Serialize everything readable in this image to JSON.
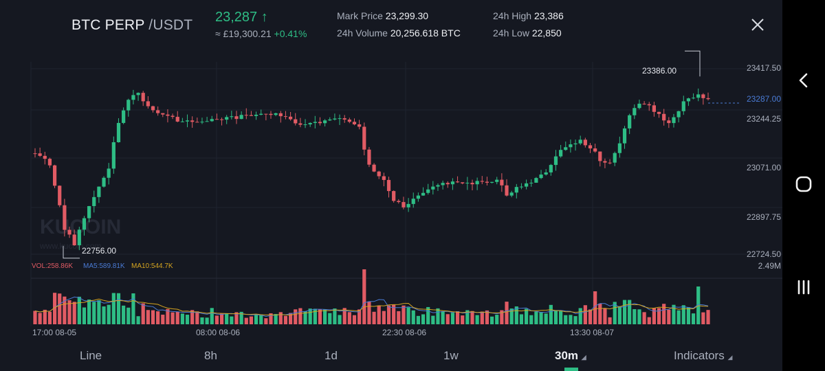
{
  "header": {
    "symbol": "BTC PERP",
    "quote": "/USDT",
    "last_price": "23,287",
    "price_arrow": "↑",
    "fiat_approx": "≈ £19,300.21",
    "change_pct": "+0.41%",
    "mark_price_label": "Mark Price",
    "mark_price_value": "23,299.30",
    "high_label": "24h High",
    "high_value": "23,386",
    "volume_label": "24h Volume",
    "volume_value": "20,256.618 BTC",
    "low_label": "24h Low",
    "low_value": "22,850",
    "close_icon": "close-icon"
  },
  "chart": {
    "price_ticks": [
      "23417.50",
      "23244.25",
      "23071.00",
      "22897.75",
      "22724.50"
    ],
    "current_price_label": "23287.00",
    "high_marker": "23386.00",
    "low_marker": "22756.00",
    "volume_max_label": "2.49M",
    "vol_legend": {
      "vol": "VOL:258.86K",
      "ma5": "MA5:589.81K",
      "ma10": "MA10:544.7K"
    },
    "time_ticks": [
      "17:00 08-05",
      "08:00 08-06",
      "22:30 08-06",
      "13:30 08-07"
    ],
    "watermark": "KUCOIN",
    "watermark_url": "www.kucoin.com",
    "colors": {
      "up": "#2ebd85",
      "down": "#e15b64",
      "ma5": "#4a7bd5",
      "ma10": "#d6a520",
      "background": "#151821",
      "grid": "#1f2330"
    }
  },
  "tabs": {
    "items": [
      "Line",
      "8h",
      "1d",
      "1w",
      "30m",
      "Indicators"
    ],
    "active": "30m"
  },
  "system_nav": {
    "back": "back-icon",
    "home": "home-icon",
    "recents": "recents-icon"
  }
}
